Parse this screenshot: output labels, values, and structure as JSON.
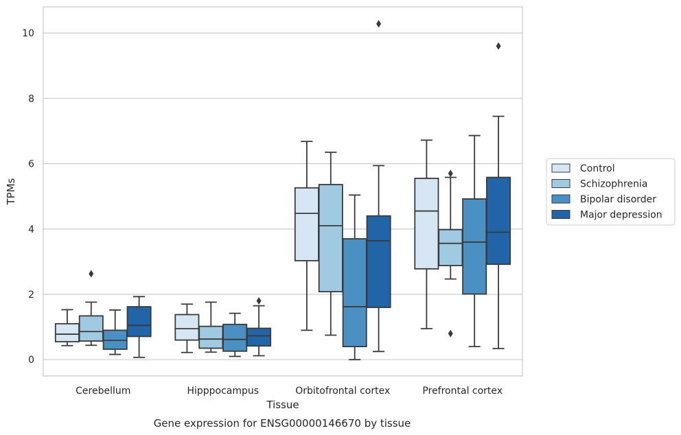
{
  "chart_data": {
    "type": "box",
    "title": "",
    "caption": "Gene expression for ENSG00000146670 by tissue",
    "xlabel": "Tissue",
    "ylabel": "TPMs",
    "ylim": [
      -0.5,
      10.8
    ],
    "yticks": [
      0,
      2,
      4,
      6,
      8,
      10
    ],
    "grid": "horizontal",
    "legend_position": "right",
    "categories": [
      "Cerebellum",
      "Hipppocampus",
      "Orbitofrontal cortex",
      "Prefrontal cortex"
    ],
    "series": [
      {
        "name": "Control",
        "color": "#d6e6f4",
        "boxes": [
          {
            "whisker_low": 0.43,
            "q1": 0.55,
            "median": 0.78,
            "q3": 1.1,
            "whisker_high": 1.53,
            "outliers": []
          },
          {
            "whisker_low": 0.22,
            "q1": 0.6,
            "median": 0.95,
            "q3": 1.38,
            "whisker_high": 1.7,
            "outliers": []
          },
          {
            "whisker_low": 0.9,
            "q1": 3.03,
            "median": 4.48,
            "q3": 5.26,
            "whisker_high": 6.68,
            "outliers": []
          },
          {
            "whisker_low": 0.95,
            "q1": 2.78,
            "median": 4.55,
            "q3": 5.55,
            "whisker_high": 6.72,
            "outliers": []
          }
        ]
      },
      {
        "name": "Schizophrenia",
        "color": "#9fcae1",
        "boxes": [
          {
            "whisker_low": 0.44,
            "q1": 0.57,
            "median": 0.86,
            "q3": 1.34,
            "whisker_high": 1.76,
            "outliers": [
              2.63
            ]
          },
          {
            "whisker_low": 0.23,
            "q1": 0.35,
            "median": 0.63,
            "q3": 1.02,
            "whisker_high": 1.76,
            "outliers": []
          },
          {
            "whisker_low": 0.75,
            "q1": 2.08,
            "median": 4.1,
            "q3": 5.36,
            "whisker_high": 6.35,
            "outliers": []
          },
          {
            "whisker_low": 2.47,
            "q1": 2.88,
            "median": 3.56,
            "q3": 3.98,
            "whisker_high": 5.58,
            "outliers": [
              5.7,
              0.8
            ]
          }
        ]
      },
      {
        "name": "Bipolar disorder",
        "color": "#4a90c2",
        "boxes": [
          {
            "whisker_low": 0.16,
            "q1": 0.32,
            "median": 0.59,
            "q3": 0.9,
            "whisker_high": 1.52,
            "outliers": []
          },
          {
            "whisker_low": 0.1,
            "q1": 0.26,
            "median": 0.62,
            "q3": 1.08,
            "whisker_high": 1.42,
            "outliers": []
          },
          {
            "whisker_low": 0.0,
            "q1": 0.4,
            "median": 1.62,
            "q3": 3.7,
            "whisker_high": 5.04,
            "outliers": []
          },
          {
            "whisker_low": 0.4,
            "q1": 2.01,
            "median": 3.6,
            "q3": 4.92,
            "whisker_high": 6.86,
            "outliers": []
          }
        ]
      },
      {
        "name": "Major depression",
        "color": "#2264a8",
        "boxes": [
          {
            "whisker_low": 0.07,
            "q1": 0.71,
            "median": 1.05,
            "q3": 1.62,
            "whisker_high": 1.93,
            "outliers": []
          },
          {
            "whisker_low": 0.12,
            "q1": 0.42,
            "median": 0.73,
            "q3": 0.96,
            "whisker_high": 1.65,
            "outliers": [
              1.8
            ]
          },
          {
            "whisker_low": 0.25,
            "q1": 1.6,
            "median": 3.64,
            "q3": 4.4,
            "whisker_high": 5.94,
            "outliers": [
              10.28
            ]
          },
          {
            "whisker_low": 0.34,
            "q1": 2.92,
            "median": 3.9,
            "q3": 5.58,
            "whisker_high": 7.45,
            "outliers": [
              9.6
            ]
          }
        ]
      }
    ]
  }
}
